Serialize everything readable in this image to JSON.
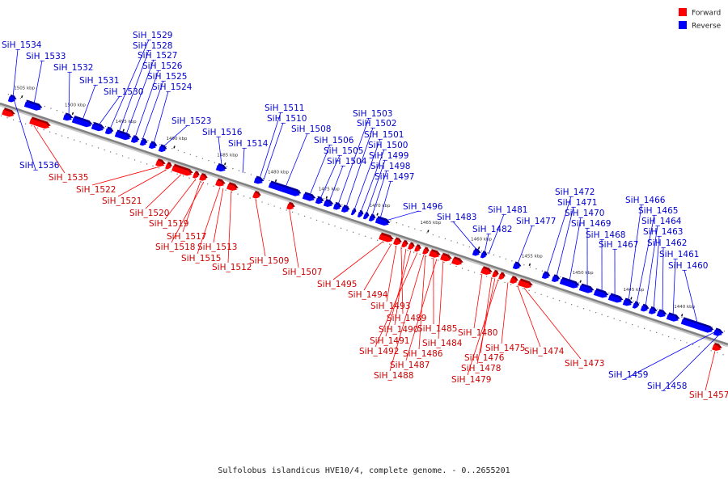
{
  "caption": "Sulfolobus islandicus HVE10/4, complete genome. - 0..2655201",
  "colors": {
    "forward": "#ff0000",
    "reverse": "#0000ff",
    "backbone": "#808080",
    "kbp_text": "#333333"
  },
  "legend": [
    {
      "strand": "forward",
      "label": "Forward",
      "color": "#ff0000"
    },
    {
      "strand": "reverse",
      "label": "Reverse",
      "color": "#0000ff"
    }
  ],
  "kbp_marks": [
    {
      "kbp": 1505,
      "label": "1505 kbp"
    },
    {
      "kbp": 1500,
      "label": "1500 kbp"
    },
    {
      "kbp": 1495,
      "label": "1495 kbp"
    },
    {
      "kbp": 1490,
      "label": "1490 kbp"
    },
    {
      "kbp": 1485,
      "label": "1485 kbp"
    },
    {
      "kbp": 1480,
      "label": "1480 kbp"
    },
    {
      "kbp": 1475,
      "label": "1475 kbp"
    },
    {
      "kbp": 1470,
      "label": "1470 kbp"
    },
    {
      "kbp": 1465,
      "label": "1465 kbp"
    },
    {
      "kbp": 1460,
      "label": "1460 kbp"
    },
    {
      "kbp": 1455,
      "label": "1455 kbp"
    },
    {
      "kbp": 1450,
      "label": "1450 kbp"
    },
    {
      "kbp": 1445,
      "label": "1445 kbp"
    },
    {
      "kbp": 1440,
      "label": "1440 kbp"
    }
  ],
  "genes": [
    {
      "id": "SiH_1534",
      "strand": "reverse"
    },
    {
      "id": "SiH_1533",
      "strand": "reverse"
    },
    {
      "id": "SiH_1532",
      "strand": "reverse"
    },
    {
      "id": "SiH_1531",
      "strand": "reverse"
    },
    {
      "id": "SiH_1530",
      "strand": "reverse"
    },
    {
      "id": "SiH_1529",
      "strand": "reverse"
    },
    {
      "id": "SiH_1528",
      "strand": "reverse"
    },
    {
      "id": "SiH_1527",
      "strand": "reverse"
    },
    {
      "id": "SiH_1526",
      "strand": "reverse"
    },
    {
      "id": "SiH_1525",
      "strand": "reverse"
    },
    {
      "id": "SiH_1524",
      "strand": "reverse"
    },
    {
      "id": "SiH_1523",
      "strand": "reverse"
    },
    {
      "id": "SiH_1516",
      "strand": "reverse"
    },
    {
      "id": "SiH_1514",
      "strand": "reverse"
    },
    {
      "id": "SiH_1511",
      "strand": "reverse"
    },
    {
      "id": "SiH_1510",
      "strand": "reverse"
    },
    {
      "id": "SiH_1508",
      "strand": "reverse"
    },
    {
      "id": "SiH_1506",
      "strand": "reverse"
    },
    {
      "id": "SiH_1505",
      "strand": "reverse"
    },
    {
      "id": "SiH_1504",
      "strand": "reverse"
    },
    {
      "id": "SiH_1503",
      "strand": "reverse"
    },
    {
      "id": "SiH_1502",
      "strand": "reverse"
    },
    {
      "id": "SiH_1501",
      "strand": "reverse"
    },
    {
      "id": "SiH_1500",
      "strand": "reverse"
    },
    {
      "id": "SiH_1499",
      "strand": "reverse"
    },
    {
      "id": "SiH_1498",
      "strand": "reverse"
    },
    {
      "id": "SiH_1497",
      "strand": "reverse"
    },
    {
      "id": "SiH_1496",
      "strand": "reverse"
    },
    {
      "id": "SiH_1483",
      "strand": "reverse"
    },
    {
      "id": "SiH_1482",
      "strand": "reverse"
    },
    {
      "id": "SiH_1481",
      "strand": "reverse"
    },
    {
      "id": "SiH_1477",
      "strand": "reverse"
    },
    {
      "id": "SiH_1472",
      "strand": "reverse"
    },
    {
      "id": "SiH_1471",
      "strand": "reverse"
    },
    {
      "id": "SiH_1470",
      "strand": "reverse"
    },
    {
      "id": "SiH_1469",
      "strand": "reverse"
    },
    {
      "id": "SiH_1468",
      "strand": "reverse"
    },
    {
      "id": "SiH_1467",
      "strand": "reverse"
    },
    {
      "id": "SiH_1466",
      "strand": "reverse"
    },
    {
      "id": "SiH_1465",
      "strand": "reverse"
    },
    {
      "id": "SiH_1464",
      "strand": "reverse"
    },
    {
      "id": "SiH_1463",
      "strand": "reverse"
    },
    {
      "id": "SiH_1462",
      "strand": "reverse"
    },
    {
      "id": "SiH_1461",
      "strand": "reverse"
    },
    {
      "id": "SiH_1460",
      "strand": "reverse"
    },
    {
      "id": "SiH_1459",
      "strand": "reverse"
    },
    {
      "id": "SiH_1458",
      "strand": "reverse"
    },
    {
      "id": "SiH_1536",
      "strand": "reverse"
    },
    {
      "id": "SiH_1535",
      "strand": "forward"
    },
    {
      "id": "SiH_1522",
      "strand": "forward"
    },
    {
      "id": "SiH_1521",
      "strand": "forward"
    },
    {
      "id": "SiH_1520",
      "strand": "forward"
    },
    {
      "id": "SiH_1519",
      "strand": "forward"
    },
    {
      "id": "SiH_1517",
      "strand": "forward"
    },
    {
      "id": "SiH_1518",
      "strand": "forward"
    },
    {
      "id": "SiH_1515",
      "strand": "forward"
    },
    {
      "id": "SiH_1513",
      "strand": "forward"
    },
    {
      "id": "SiH_1512",
      "strand": "forward"
    },
    {
      "id": "SiH_1509",
      "strand": "forward"
    },
    {
      "id": "SiH_1507",
      "strand": "forward"
    },
    {
      "id": "SiH_1495",
      "strand": "forward"
    },
    {
      "id": "SiH_1494",
      "strand": "forward"
    },
    {
      "id": "SiH_1493",
      "strand": "forward"
    },
    {
      "id": "SiH_1489",
      "strand": "forward"
    },
    {
      "id": "SiH_1490",
      "strand": "forward"
    },
    {
      "id": "SiH_1485",
      "strand": "forward"
    },
    {
      "id": "SiH_1491",
      "strand": "forward"
    },
    {
      "id": "SiH_1484",
      "strand": "forward"
    },
    {
      "id": "SiH_1492",
      "strand": "forward"
    },
    {
      "id": "SiH_1486",
      "strand": "forward"
    },
    {
      "id": "SiH_1487",
      "strand": "forward"
    },
    {
      "id": "SiH_1488",
      "strand": "forward"
    },
    {
      "id": "SiH_1480",
      "strand": "forward"
    },
    {
      "id": "SiH_1475",
      "strand": "forward"
    },
    {
      "id": "SiH_1476",
      "strand": "forward"
    },
    {
      "id": "SiH_1474",
      "strand": "forward"
    },
    {
      "id": "SiH_1478",
      "strand": "forward"
    },
    {
      "id": "SiH_1479",
      "strand": "forward"
    },
    {
      "id": "SiH_1473",
      "strand": "forward"
    },
    {
      "id": "SiH_1457",
      "strand": "forward"
    }
  ]
}
